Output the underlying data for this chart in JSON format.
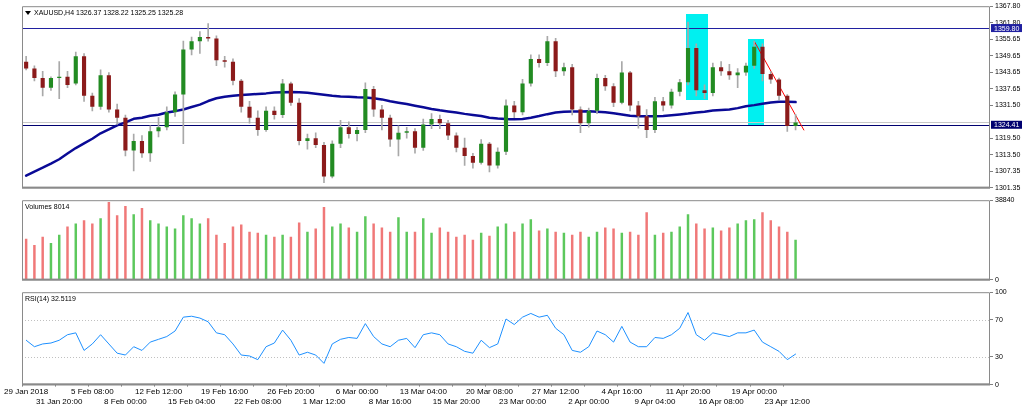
{
  "chart_data": [
    {
      "type": "candlestick",
      "title": "XAUUSD,H4 1326.37 1328.22 1325.25 1325.28",
      "categories": [
        null,
        null,
        null,
        null,
        null,
        null,
        null,
        null,
        null,
        null,
        null,
        null,
        null,
        null,
        null,
        null,
        null,
        null,
        null,
        null,
        null,
        null,
        null,
        null,
        null,
        null,
        null,
        null,
        null,
        null,
        null,
        null,
        null,
        null,
        null,
        null,
        null,
        null,
        null,
        null,
        null,
        null,
        null,
        null,
        null,
        null,
        null,
        null,
        null,
        null,
        null,
        null,
        null,
        null,
        null,
        null,
        null,
        null,
        null,
        null,
        null,
        null,
        null,
        null,
        null,
        null,
        null,
        null,
        null,
        null,
        null,
        null,
        null,
        null,
        null,
        null,
        null,
        null,
        null,
        null,
        null,
        null,
        null,
        null,
        null,
        null,
        null,
        null,
        null,
        null,
        null,
        null,
        null,
        null,
        null,
        null,
        null,
        null,
        null,
        null,
        null,
        null,
        null,
        null,
        null,
        null,
        null,
        null,
        null,
        null,
        null,
        null,
        null,
        null,
        null,
        null,
        null
      ],
      "ohlc": [
        [
          1347.5,
          1349.5,
          1344.5,
          1345
        ],
        [
          1345,
          1346,
          1340.5,
          1341.5
        ],
        [
          1341.5,
          1344,
          1335,
          1338
        ],
        [
          1338,
          1342,
          1337,
          1341.5
        ],
        [
          1341.5,
          1347.5,
          1334,
          1342
        ],
        [
          1342,
          1344,
          1338,
          1339
        ],
        [
          1339.5,
          1351,
          1339,
          1349.5
        ],
        [
          1349.5,
          1350.5,
          1333,
          1335
        ],
        [
          1335,
          1336,
          1329.5,
          1331
        ],
        [
          1331,
          1344.5,
          1330,
          1342.5
        ],
        [
          1342.5,
          1343.5,
          1329,
          1330
        ],
        [
          1330,
          1332,
          1324.5,
          1327
        ],
        [
          1327,
          1328,
          1313,
          1315
        ],
        [
          1315,
          1321,
          1307.5,
          1318.5
        ],
        [
          1318.5,
          1320.5,
          1312.5,
          1314
        ],
        [
          1314,
          1324,
          1311,
          1322
        ],
        [
          1322,
          1327,
          1320,
          1323.5
        ],
        [
          1323.5,
          1331,
          1322.5,
          1329
        ],
        [
          1329,
          1336.5,
          1327.5,
          1335.5
        ],
        [
          1335.5,
          1355,
          1317.5,
          1352
        ],
        [
          1352,
          1356.5,
          1350,
          1355
        ],
        [
          1355,
          1358.5,
          1350.5,
          1356.5
        ],
        [
          1356.5,
          1361.4,
          1355,
          1356
        ],
        [
          1356,
          1357,
          1346,
          1348
        ],
        [
          1348,
          1349.5,
          1345.5,
          1347.5
        ],
        [
          1347.5,
          1348.5,
          1339,
          1340.5
        ],
        [
          1340.5,
          1341,
          1329,
          1331
        ],
        [
          1331,
          1333,
          1325,
          1327
        ],
        [
          1327,
          1329.5,
          1320.5,
          1322.5
        ],
        [
          1322.5,
          1331,
          1322,
          1329.5
        ],
        [
          1329.5,
          1331,
          1326.5,
          1328
        ],
        [
          1328,
          1341,
          1327,
          1339.5
        ],
        [
          1339.5,
          1340,
          1331.5,
          1332.5
        ],
        [
          1332.5,
          1334,
          1317,
          1318.5
        ],
        [
          1318.5,
          1321,
          1315.5,
          1319.5
        ],
        [
          1319.5,
          1321.5,
          1316,
          1317
        ],
        [
          1317,
          1318,
          1303.2,
          1305.5
        ],
        [
          1305.5,
          1318.5,
          1305,
          1317.5
        ],
        [
          1317.5,
          1326,
          1316,
          1323.5
        ],
        [
          1323.5,
          1325.5,
          1319.5,
          1321
        ],
        [
          1321,
          1323.5,
          1318.5,
          1322.5
        ],
        [
          1322.5,
          1339.8,
          1321.5,
          1337.5
        ],
        [
          1337.5,
          1338.5,
          1327.5,
          1330
        ],
        [
          1330,
          1331.5,
          1322.5,
          1327
        ],
        [
          1327,
          1328,
          1316.5,
          1319
        ],
        [
          1319,
          1324,
          1313,
          1321.5
        ],
        [
          1321.5,
          1323.5,
          1319.5,
          1322
        ],
        [
          1322,
          1323,
          1314,
          1316
        ],
        [
          1316,
          1326.5,
          1315,
          1324.5
        ],
        [
          1324.5,
          1328.5,
          1323,
          1326.5
        ],
        [
          1326.5,
          1328,
          1323,
          1325
        ],
        [
          1325,
          1326,
          1319,
          1320.5
        ],
        [
          1320.5,
          1321.5,
          1314.5,
          1316
        ],
        [
          1316,
          1319.5,
          1309.5,
          1313
        ],
        [
          1313,
          1314,
          1308.5,
          1310.5
        ],
        [
          1310.5,
          1319,
          1310,
          1317.5
        ],
        [
          1317.5,
          1318,
          1307.2,
          1309.5
        ],
        [
          1309.5,
          1316,
          1308.5,
          1314.5
        ],
        [
          1314.5,
          1333.5,
          1313.5,
          1331.5
        ],
        [
          1331.5,
          1333,
          1327,
          1329
        ],
        [
          1329,
          1341,
          1328,
          1339.5
        ],
        [
          1339.5,
          1350,
          1338.5,
          1348.5
        ],
        [
          1348.5,
          1350,
          1345.5,
          1347
        ],
        [
          1347,
          1356.8,
          1346,
          1355
        ],
        [
          1355,
          1356,
          1342,
          1344
        ],
        [
          1344,
          1347,
          1342.5,
          1345.5
        ],
        [
          1345.5,
          1346.5,
          1328,
          1330
        ],
        [
          1330,
          1331,
          1321.5,
          1325
        ],
        [
          1325,
          1330.5,
          1323.5,
          1329.5
        ],
        [
          1329.5,
          1343,
          1328.5,
          1341.5
        ],
        [
          1341.5,
          1342.5,
          1337,
          1338.5
        ],
        [
          1338.5,
          1339.5,
          1331,
          1332.5
        ],
        [
          1332.5,
          1347.5,
          1332,
          1343.5
        ],
        [
          1343.5,
          1344,
          1329.5,
          1331.5
        ],
        [
          1331.5,
          1333,
          1323.2,
          1327.5
        ],
        [
          1327.5,
          1330,
          1319.7,
          1322.5
        ],
        [
          1322.5,
          1334.5,
          1321.5,
          1333
        ],
        [
          1333,
          1334.5,
          1329.5,
          1331.5
        ],
        [
          1331.5,
          1337.5,
          1330.5,
          1336.5
        ],
        [
          1336.5,
          1341,
          1335,
          1340
        ],
        [
          1340,
          1362,
          1339,
          1352.5
        ],
        [
          1352.5,
          1354,
          1335,
          1337
        ],
        [
          1337,
          1339,
          1334,
          1336
        ],
        [
          1336,
          1347,
          1335,
          1345.5
        ],
        [
          1345.5,
          1347.5,
          1342.5,
          1344
        ],
        [
          1344,
          1346.5,
          1341,
          1342.5
        ],
        [
          1342.5,
          1345,
          1338,
          1343.5
        ],
        [
          1343.5,
          1347,
          1342.5,
          1346
        ],
        [
          1346,
          1355,
          1345,
          1353
        ],
        [
          1353,
          1354,
          1340.5,
          1343
        ],
        [
          1343,
          1344,
          1339.5,
          1341
        ],
        [
          1341,
          1341.5,
          1333.5,
          1335
        ],
        [
          1335,
          1335.5,
          1322,
          1324
        ],
        [
          1324,
          1328.22,
          1322.5,
          1325.28
        ],
        null,
        null,
        null,
        null,
        null,
        null,
        null,
        null,
        null,
        null,
        null,
        null,
        null,
        null,
        null,
        null,
        null,
        null,
        null,
        null,
        null,
        null,
        null
      ],
      "color": "#a9a9a9",
      "colors": [
        "#8b1a1a",
        "#8b1a1a",
        "#8b1a1a",
        "#228b22",
        "#228b22",
        "#8b1a1a",
        "#228b22",
        "#8b1a1a",
        "#8b1a1a",
        "#228b22",
        "#8b1a1a",
        "#8b1a1a",
        "#8b1a1a",
        "#228b22",
        "#8b1a1a",
        "#228b22",
        "#228b22",
        "#228b22",
        "#228b22",
        "#228b22",
        "#228b22",
        "#228b22",
        "#8b1a1a",
        "#8b1a1a",
        "#8b1a1a",
        "#8b1a1a",
        "#8b1a1a",
        "#8b1a1a",
        "#8b1a1a",
        "#228b22",
        "#8b1a1a",
        "#228b22",
        "#8b1a1a",
        "#8b1a1a",
        "#228b22",
        "#8b1a1a",
        "#8b1a1a",
        "#228b22",
        "#228b22",
        "#8b1a1a",
        "#228b22",
        "#228b22",
        "#8b1a1a",
        "#8b1a1a",
        "#8b1a1a",
        "#228b22",
        "#228b22",
        "#8b1a1a",
        "#228b22",
        "#228b22",
        "#8b1a1a",
        "#8b1a1a",
        "#8b1a1a",
        "#8b1a1a",
        "#8b1a1a",
        "#228b22",
        "#8b1a1a",
        "#228b22",
        "#228b22",
        "#8b1a1a",
        "#228b22",
        "#228b22",
        "#8b1a1a",
        "#228b22",
        "#8b1a1a",
        "#228b22",
        "#8b1a1a",
        "#8b1a1a",
        "#228b22",
        "#228b22",
        "#8b1a1a",
        "#8b1a1a",
        "#228b22",
        "#8b1a1a",
        "#8b1a1a",
        "#8b1a1a",
        "#228b22",
        "#8b1a1a",
        "#228b22",
        "#228b22",
        "#228b22",
        "#8b1a1a",
        "#8b1a1a",
        "#228b22",
        "#8b1a1a",
        "#8b1a1a",
        "#228b22",
        "#228b22",
        "#228b22",
        "#8b1a1a",
        "#8b1a1a",
        "#8b1a1a",
        "#8b1a1a",
        "#228b22",
        null,
        null,
        null,
        null,
        null,
        null,
        null,
        null,
        null,
        null,
        null,
        null,
        null,
        null,
        null,
        null,
        null,
        null,
        null,
        null,
        null,
        null,
        null
      ],
      "series": [
        {
          "type": "line",
          "color": "#0a0a96",
          "values": [
            1305.8,
            1307.3,
            1308.7,
            1310.2,
            1311.8,
            1313.9,
            1315.9,
            1317.6,
            1319.3,
            1321.3,
            1322.7,
            1324.2,
            1325.3,
            1326.6,
            1327,
            1327.7,
            1328.1,
            1328.9,
            1329.4,
            1330,
            1330.9,
            1331.8,
            1333.1,
            1334.1,
            1334.7,
            1335,
            1335.3,
            1335.5,
            1335.7,
            1335.9,
            1336.2,
            1336.3,
            1336.4,
            1336.3,
            1336.1,
            1335.8,
            1335.4,
            1335,
            1334.8,
            1334.7,
            1334.5,
            1334.4,
            1334.1,
            1333.7,
            1333,
            1332.5,
            1332,
            1331.4,
            1330.8,
            1330.2,
            1329.7,
            1329.3,
            1328.9,
            1328.4,
            1328,
            1327.6,
            1327,
            1326.7,
            1326.5,
            1326.4,
            1326.5,
            1327,
            1327.6,
            1328.3,
            1328.9,
            1329.2,
            1329.3,
            1329.3,
            1329.4,
            1329.2,
            1329,
            1328.6,
            1328.2,
            1327.7,
            1327.5,
            1327.5,
            1327.5,
            1327.6,
            1327.9,
            1328.2,
            1328.5,
            1328.9,
            1329.2,
            1329.6,
            1329.8,
            1330,
            1330.5,
            1331.2,
            1331.6,
            1332.1,
            1332.6,
            1332.8,
            1332.8,
            1332.7,
            null,
            null,
            null,
            null,
            null,
            null,
            null,
            null,
            null,
            null,
            null,
            null,
            null,
            null,
            null,
            null,
            null,
            null,
            null,
            null,
            null,
            null,
            null
          ]
        },
        {
          "type": "line",
          "color": "#ff0000",
          "values": [
            null,
            null,
            null,
            null,
            null,
            null,
            null,
            null,
            null,
            null,
            null,
            null,
            null,
            null,
            null,
            null,
            null,
            null,
            null,
            null,
            null,
            null,
            null,
            null,
            null,
            null,
            null,
            null,
            null,
            null,
            null,
            null,
            null,
            null,
            null,
            null,
            null,
            null,
            null,
            null,
            null,
            null,
            null,
            null,
            null,
            null,
            null,
            null,
            null,
            null,
            null,
            null,
            null,
            null,
            null,
            null,
            null,
            null,
            null,
            null,
            null,
            null,
            null,
            null,
            null,
            null,
            null,
            null,
            null,
            null,
            null,
            null,
            null,
            null,
            null,
            null,
            null,
            null,
            null,
            null,
            null,
            null,
            null,
            null,
            null,
            null,
            null,
            null,
            1355,
            null,
            null,
            null,
            null,
            null,
            1322.5,
            null,
            null,
            null,
            null,
            null,
            null,
            null,
            null,
            null,
            null,
            null,
            null,
            null,
            null,
            null,
            null,
            null,
            null,
            null,
            null,
            null,
            null
          ]
        }
      ],
      "ylim": [
        1301.35,
        1367.8
      ],
      "yticks": [
        {
          "value": 1301.35,
          "label": "1301.35"
        },
        {
          "value": 1307.35,
          "label": "1307.35"
        },
        {
          "value": 1313.5,
          "label": "1313.50"
        },
        {
          "value": 1319.5,
          "label": "1319.50"
        },
        {
          "value": 1331.5,
          "label": "1331.50"
        },
        {
          "value": 1337.65,
          "label": "1337.65"
        },
        {
          "value": 1343.65,
          "label": "1343.65"
        },
        {
          "value": 1349.65,
          "label": "1349.65"
        },
        {
          "value": 1355.65,
          "label": "1355.65"
        },
        {
          "value": 1361.8,
          "label": "1361.80"
        },
        {
          "value": 1367.8,
          "label": "1367.80"
        }
      ],
      "ref_lines": [
        {
          "axis": "y",
          "value": 1359.8,
          "label": "1359.80",
          "color": "#2020a0"
        },
        {
          "axis": "y",
          "value": 1325.28,
          "color": "#c8c8c8"
        },
        {
          "axis": "y",
          "value": 1324.41,
          "label": "1324.41",
          "color": "#000070"
        }
      ],
      "tick_labels": "y"
    },
    {
      "type": "bar",
      "title": "Volumes 8014",
      "categories": [
        null,
        null,
        null,
        null,
        null,
        null,
        null,
        null,
        null,
        null,
        null,
        null,
        null,
        null,
        null,
        null,
        null,
        null,
        null,
        null,
        null,
        null,
        null,
        null,
        null,
        null,
        null,
        null,
        null,
        null,
        null,
        null,
        null,
        null,
        null,
        null,
        null,
        null,
        null,
        null,
        null,
        null,
        null,
        null,
        null,
        null,
        null,
        null,
        null,
        null,
        null,
        null,
        null,
        null,
        null,
        null,
        null,
        null,
        null,
        null,
        null,
        null,
        null,
        null,
        null,
        null,
        null,
        null,
        null,
        null,
        null,
        null,
        null,
        null,
        null,
        null,
        null,
        null,
        null,
        null,
        null,
        null,
        null,
        null,
        null,
        null,
        null,
        null,
        null,
        null,
        null,
        null,
        null,
        null,
        null,
        null,
        null,
        null,
        null,
        null,
        null,
        null,
        null,
        null,
        null,
        null,
        null,
        null,
        null,
        null,
        null,
        null,
        null,
        null,
        null,
        null,
        null
      ],
      "values": [
        20000,
        17000,
        21000,
        18000,
        22000,
        26000,
        27500,
        29000,
        27500,
        30000,
        38000,
        31500,
        36000,
        32000,
        35000,
        29000,
        27500,
        26000,
        25000,
        31500,
        30000,
        27500,
        30000,
        22000,
        18000,
        26000,
        27000,
        23500,
        23000,
        22000,
        21000,
        22000,
        21000,
        28000,
        23500,
        25000,
        35500,
        26000,
        27500,
        25500,
        23500,
        31000,
        27500,
        25500,
        23500,
        30500,
        23500,
        23500,
        30000,
        23000,
        25500,
        23500,
        21000,
        22000,
        19500,
        23000,
        21500,
        26000,
        27500,
        23500,
        27500,
        29500,
        24000,
        25000,
        23500,
        23000,
        22000,
        23500,
        21000,
        23500,
        25500,
        25000,
        23000,
        23500,
        22000,
        33000,
        22000,
        23000,
        23500,
        26000,
        32000,
        27500,
        25000,
        25500,
        24000,
        25500,
        27500,
        29000,
        29500,
        33000,
        29000,
        26000,
        23500,
        19500,
        null,
        null,
        null,
        null,
        null,
        null,
        null,
        null,
        null,
        null,
        null,
        null,
        null,
        null,
        null,
        null,
        null,
        null,
        null,
        null,
        null,
        null,
        null
      ],
      "colors": [
        "#f07878",
        "#f07878",
        "#f07878",
        "#5cc85c",
        "#5cc85c",
        "#f07878",
        "#5cc85c",
        "#f07878",
        "#f07878",
        "#5cc85c",
        "#f07878",
        "#f07878",
        "#f07878",
        "#5cc85c",
        "#f07878",
        "#5cc85c",
        "#5cc85c",
        "#5cc85c",
        "#5cc85c",
        "#5cc85c",
        "#5cc85c",
        "#5cc85c",
        "#f07878",
        "#f07878",
        "#f07878",
        "#f07878",
        "#f07878",
        "#f07878",
        "#f07878",
        "#5cc85c",
        "#f07878",
        "#5cc85c",
        "#f07878",
        "#f07878",
        "#5cc85c",
        "#f07878",
        "#f07878",
        "#5cc85c",
        "#5cc85c",
        "#f07878",
        "#5cc85c",
        "#5cc85c",
        "#f07878",
        "#f07878",
        "#f07878",
        "#5cc85c",
        "#5cc85c",
        "#f07878",
        "#5cc85c",
        "#5cc85c",
        "#f07878",
        "#f07878",
        "#f07878",
        "#f07878",
        "#f07878",
        "#5cc85c",
        "#f07878",
        "#5cc85c",
        "#5cc85c",
        "#f07878",
        "#5cc85c",
        "#5cc85c",
        "#f07878",
        "#5cc85c",
        "#f07878",
        "#5cc85c",
        "#f07878",
        "#f07878",
        "#5cc85c",
        "#5cc85c",
        "#f07878",
        "#f07878",
        "#5cc85c",
        "#f07878",
        "#f07878",
        "#f07878",
        "#5cc85c",
        "#f07878",
        "#5cc85c",
        "#5cc85c",
        "#5cc85c",
        "#f07878",
        "#f07878",
        "#5cc85c",
        "#f07878",
        "#f07878",
        "#5cc85c",
        "#5cc85c",
        "#5cc85c",
        "#f07878",
        "#f07878",
        "#f07878",
        "#f07878",
        "#5cc85c",
        null,
        null,
        null,
        null,
        null,
        null,
        null,
        null,
        null,
        null,
        null,
        null,
        null,
        null,
        null,
        null,
        null,
        null,
        null,
        null,
        null,
        null,
        null
      ],
      "ylim": [
        0,
        38840
      ],
      "yticks": [
        0,
        38840
      ],
      "tick_labels": "y"
    },
    {
      "type": "line",
      "title": "RSI(14) 32.5119",
      "categories": [
        "29 Jan 2018",
        null,
        null,
        null,
        "31 Jan 20:00",
        null,
        null,
        null,
        "5 Feb 08:00",
        null,
        null,
        null,
        "8 Feb 00:00",
        null,
        null,
        null,
        "12 Feb 12:00",
        null,
        null,
        null,
        "15 Feb 04:00",
        null,
        null,
        null,
        "19 Feb 16:00",
        null,
        null,
        null,
        "22 Feb 08:00",
        null,
        null,
        null,
        "26 Feb 20:00",
        null,
        null,
        null,
        "1 Mar 12:00",
        null,
        null,
        null,
        "6 Mar 00:00",
        null,
        null,
        null,
        "8 Mar 16:00",
        null,
        null,
        null,
        "13 Mar 04:00",
        null,
        null,
        null,
        "15 Mar 20:00",
        null,
        null,
        null,
        "20 Mar 08:00",
        null,
        null,
        null,
        "23 Mar 00:00",
        null,
        null,
        null,
        "27 Mar 12:00",
        null,
        null,
        null,
        "2 Apr 00:00",
        null,
        null,
        null,
        "4 Apr 16:00",
        null,
        null,
        null,
        "9 Apr 04:00",
        null,
        null,
        null,
        "11 Apr 20:00",
        null,
        null,
        null,
        "16 Apr 08:00",
        null,
        null,
        null,
        "19 Apr 00:00",
        null,
        null,
        null,
        "23 Apr 12:00",
        null,
        null,
        null,
        null,
        null,
        null,
        null,
        null,
        null,
        null,
        null,
        null,
        null,
        null,
        null,
        null,
        null,
        null,
        null,
        null,
        null,
        null,
        null,
        null
      ],
      "series": [
        {
          "color": "#1e90ff",
          "values": [
            48,
            41,
            44,
            45,
            48,
            54,
            56,
            37,
            44,
            54,
            44,
            34,
            32,
            41,
            37,
            46,
            49,
            52,
            58,
            73,
            74,
            72,
            68,
            56,
            54,
            44,
            32,
            31,
            27,
            41,
            45,
            59,
            48,
            32,
            35,
            32,
            23,
            44,
            49,
            51,
            50,
            66,
            52,
            44,
            41,
            48,
            50,
            40,
            54,
            56,
            54,
            44,
            41,
            36,
            34,
            48,
            40,
            44,
            71,
            65,
            73,
            77,
            73,
            75,
            61,
            54,
            37,
            35,
            41,
            58,
            54,
            46,
            63,
            46,
            41,
            41,
            51,
            50,
            54,
            61,
            78,
            54,
            48,
            56,
            54,
            52,
            56,
            56,
            59,
            46,
            41,
            36,
            27,
            33,
            null,
            null,
            null,
            null,
            null,
            null,
            null,
            null,
            null,
            null,
            null,
            null,
            null,
            null,
            null,
            null,
            null,
            null,
            null,
            null,
            null,
            null,
            null
          ]
        }
      ],
      "ylim": [
        0,
        100
      ],
      "yticks": [
        0,
        30,
        70,
        100
      ],
      "ref_lines": [
        {
          "axis": "y",
          "value": 70,
          "color": "#c0c0c0",
          "line_style": "dotted"
        },
        {
          "axis": "y",
          "value": 30,
          "color": "#c0c0c0",
          "line_style": "dotted"
        }
      ]
    }
  ]
}
